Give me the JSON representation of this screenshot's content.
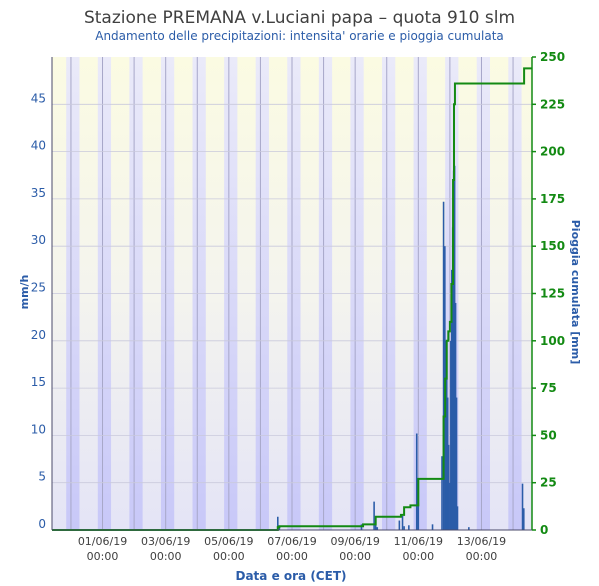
{
  "chart_data": {
    "type": "bar+line",
    "title": "Stazione PREMANA v.Luciani papa – quota 910 slm",
    "subtitle": "Andamento delle precipitazioni: intensita' orarie e pioggia cumulata",
    "xlabel": "Data e ora (CET)",
    "ylabel_left": "mm/h",
    "ylabel_right": "Pioggia cumulata [mm]",
    "ylim_left": [
      0,
      50
    ],
    "ylim_right": [
      0,
      250
    ],
    "yticks_left": [
      "0",
      "5",
      "10",
      "15",
      "20",
      "25",
      "30",
      "35",
      "40",
      "45"
    ],
    "yticks_right": [
      "0",
      "25",
      "50",
      "75",
      "100",
      "125",
      "150",
      "175",
      "200",
      "225",
      "250"
    ],
    "x_range_days": [
      -0.6,
      14.6
    ],
    "xticks": [
      {
        "day": 1,
        "label_date": "01/06/19",
        "label_time": "00:00"
      },
      {
        "day": 3,
        "label_date": "03/06/19",
        "label_time": "00:00"
      },
      {
        "day": 5,
        "label_date": "05/06/19",
        "label_time": "00:00"
      },
      {
        "day": 7,
        "label_date": "07/06/19",
        "label_time": "00:00"
      },
      {
        "day": 9,
        "label_date": "09/06/19",
        "label_time": "00:00"
      },
      {
        "day": 11,
        "label_date": "11/06/19",
        "label_time": "00:00"
      },
      {
        "day": 13,
        "label_date": "13/06/19",
        "label_time": "00:00"
      }
    ],
    "series": [
      {
        "name": "Intensita' oraria (mm/h)",
        "axis": "left",
        "color": "#2b5ca8",
        "values_day_mmh": [
          [
            6.55,
            1.4
          ],
          [
            6.6,
            0.4
          ],
          [
            9.2,
            0.6
          ],
          [
            9.6,
            3.0
          ],
          [
            9.65,
            1.0
          ],
          [
            9.7,
            0.3
          ],
          [
            10.4,
            1.0
          ],
          [
            10.5,
            1.5
          ],
          [
            10.55,
            0.4
          ],
          [
            10.7,
            0.5
          ],
          [
            10.95,
            10.2
          ],
          [
            11.0,
            2.8
          ],
          [
            11.45,
            0.6
          ],
          [
            11.75,
            7.8
          ],
          [
            11.8,
            34.7
          ],
          [
            11.84,
            30.0
          ],
          [
            11.87,
            20.0
          ],
          [
            11.9,
            19.0
          ],
          [
            11.93,
            14.0
          ],
          [
            11.96,
            9.0
          ],
          [
            12.0,
            5.0
          ],
          [
            12.03,
            20.0
          ],
          [
            12.06,
            27.5
          ],
          [
            12.09,
            32.0
          ],
          [
            12.12,
            38.0
          ],
          [
            12.15,
            38.5
          ],
          [
            12.18,
            24.0
          ],
          [
            12.21,
            14.0
          ],
          [
            12.24,
            2.5
          ],
          [
            12.6,
            0.3
          ],
          [
            14.3,
            4.9
          ],
          [
            14.34,
            2.3
          ]
        ]
      },
      {
        "name": "Pioggia cumulata (mm)",
        "axis": "right",
        "color": "#138a13",
        "steps_day_mm": [
          [
            -0.6,
            0
          ],
          [
            6.5,
            0
          ],
          [
            6.55,
            1.5
          ],
          [
            6.6,
            2
          ],
          [
            9.2,
            2
          ],
          [
            9.25,
            3
          ],
          [
            9.6,
            3
          ],
          [
            9.65,
            7
          ],
          [
            10.4,
            7
          ],
          [
            10.45,
            8
          ],
          [
            10.55,
            12
          ],
          [
            10.75,
            13
          ],
          [
            10.95,
            13
          ],
          [
            11.0,
            27
          ],
          [
            11.75,
            27
          ],
          [
            11.8,
            60
          ],
          [
            11.85,
            80
          ],
          [
            11.9,
            100
          ],
          [
            11.95,
            105
          ],
          [
            12.0,
            110
          ],
          [
            12.05,
            130
          ],
          [
            12.1,
            185
          ],
          [
            12.13,
            225
          ],
          [
            12.16,
            236
          ],
          [
            14.3,
            236
          ],
          [
            14.35,
            244
          ],
          [
            14.6,
            244
          ]
        ]
      }
    ],
    "colors": {
      "title": "#404040",
      "subtitle": "#2b5ca8",
      "left_axis": "#2b5ca8",
      "right_axis": "#138a13",
      "bar": "#2b5ca8",
      "cumulative_line": "#138a13",
      "night_band_top": "#dcdcf5",
      "night_band_bottom": "#c4c4f8",
      "day_band_top": "#fafae0",
      "day_band_bottom": "#e8e8f8"
    },
    "grid": true
  }
}
